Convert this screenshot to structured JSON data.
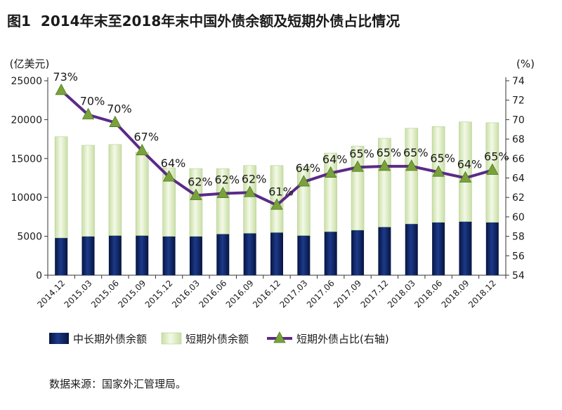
{
  "title_prefix": "图1",
  "title": "2014年末至2018年末中国外债余额及短期外债占比情况",
  "source": "数据来源：国家外汇管理局。",
  "chart_data": {
    "type": "bar",
    "categories": [
      "2014.12",
      "2015.03",
      "2015.06",
      "2015.09",
      "2015.12",
      "2016.03",
      "2016.06",
      "2016.09",
      "2016.12",
      "2017.03",
      "2017.06",
      "2017.09",
      "2017.12",
      "2018.03",
      "2018.06",
      "2018.09",
      "2018.12"
    ],
    "left_axis_label": "(亿美元)",
    "right_axis_label": "(%)",
    "ylim_left": [
      0,
      25000
    ],
    "yticks_left": [
      0,
      5000,
      10000,
      15000,
      20000,
      25000
    ],
    "ylim_right": [
      54,
      74
    ],
    "yticks_right": [
      54,
      56,
      58,
      60,
      62,
      64,
      66,
      68,
      70,
      72,
      74
    ],
    "series": [
      {
        "name": "中长期外债余额",
        "type": "bar",
        "stacked": true,
        "color": "#0b1f5c",
        "values": [
          4800,
          5000,
          5100,
          5100,
          5000,
          5000,
          5300,
          5400,
          5500,
          5100,
          5600,
          5800,
          6200,
          6600,
          6800,
          6900,
          6800
        ]
      },
      {
        "name": "短期外债余额",
        "type": "bar",
        "stacked": true,
        "color": "#e2efcb",
        "values": [
          13000,
          11700,
          11700,
          10700,
          8800,
          8700,
          8400,
          8700,
          8600,
          8900,
          10100,
          10800,
          11400,
          12300,
          12300,
          12800,
          12800
        ]
      },
      {
        "name": "短期外债占比(右轴)",
        "type": "line",
        "axis": "right",
        "color": "#5b2a86",
        "marker_color": "#7aa23c",
        "values": [
          73.0,
          70.5,
          69.7,
          66.8,
          64.1,
          62.2,
          62.4,
          62.5,
          61.2,
          63.6,
          64.5,
          65.1,
          65.2,
          65.2,
          64.6,
          64.0,
          64.8
        ],
        "labels": [
          "73%",
          "70%",
          "70%",
          "67%",
          "64%",
          "62%",
          "62%",
          "62%",
          "61%",
          "64%",
          "64%",
          "65%",
          "65%",
          "65%",
          "65%",
          "64%",
          "65%"
        ]
      }
    ],
    "legend": [
      "中长期外债余额",
      "短期外债余额",
      "短期外债占比(右轴)"
    ],
    "legend_position": "bottom",
    "grid": false
  }
}
